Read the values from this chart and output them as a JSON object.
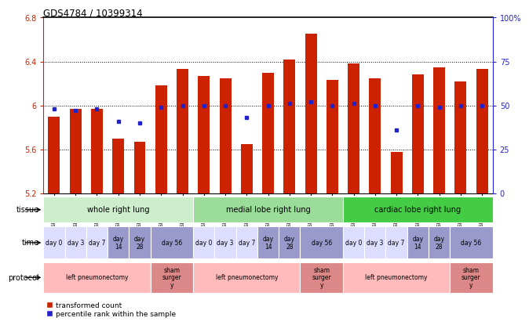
{
  "title": "GDS4784 / 10399314",
  "samples": [
    "GSM979804",
    "GSM979805",
    "GSM979806",
    "GSM979807",
    "GSM979808",
    "GSM979809",
    "GSM979810",
    "GSM979790",
    "GSM979791",
    "GSM979792",
    "GSM979793",
    "GSM979794",
    "GSM979795",
    "GSM979796",
    "GSM979797",
    "GSM979798",
    "GSM979799",
    "GSM979800",
    "GSM979801",
    "GSM979802",
    "GSM979803"
  ],
  "bar_values": [
    5.9,
    5.97,
    5.97,
    5.7,
    5.67,
    6.18,
    6.33,
    6.27,
    6.25,
    5.65,
    6.3,
    6.42,
    6.65,
    6.23,
    6.38,
    6.25,
    5.58,
    6.28,
    6.35,
    6.22,
    6.33
  ],
  "percentile_values": [
    48,
    47,
    48,
    41,
    40,
    49,
    50,
    50,
    50,
    43,
    50,
    51,
    52,
    50,
    51,
    50,
    36,
    50,
    49,
    50,
    50
  ],
  "ylim_left": [
    5.2,
    6.8
  ],
  "ylim_right": [
    0,
    100
  ],
  "yticks_left": [
    5.2,
    5.6,
    6.0,
    6.4,
    6.8
  ],
  "yticks_right": [
    0,
    25,
    50,
    75,
    100
  ],
  "ytick_labels_left": [
    "5.2",
    "5.6",
    "6",
    "6.4",
    "6.8"
  ],
  "ytick_labels_right": [
    "0",
    "25",
    "50",
    "75",
    "100%"
  ],
  "bar_color": "#cc2200",
  "dot_color": "#2222cc",
  "background_color": "#ffffff",
  "grid_color": "#888888",
  "tissue_groups": [
    {
      "label": "whole right lung",
      "start": 0,
      "end": 7,
      "color": "#cceecc"
    },
    {
      "label": "medial lobe right lung",
      "start": 7,
      "end": 14,
      "color": "#99dd99"
    },
    {
      "label": "cardiac lobe right lung",
      "start": 14,
      "end": 21,
      "color": "#44cc44"
    }
  ],
  "time_groups": [
    {
      "label": "day 0",
      "start": 0,
      "end": 1,
      "color": "#ddddff"
    },
    {
      "label": "day 3",
      "start": 1,
      "end": 2,
      "color": "#ddddff"
    },
    {
      "label": "day 7",
      "start": 2,
      "end": 3,
      "color": "#ddddff"
    },
    {
      "label": "day\n14",
      "start": 3,
      "end": 4,
      "color": "#9999cc"
    },
    {
      "label": "day\n28",
      "start": 4,
      "end": 5,
      "color": "#9999cc"
    },
    {
      "label": "day 56",
      "start": 5,
      "end": 7,
      "color": "#9999cc"
    },
    {
      "label": "day 0",
      "start": 7,
      "end": 8,
      "color": "#ddddff"
    },
    {
      "label": "day 3",
      "start": 8,
      "end": 9,
      "color": "#ddddff"
    },
    {
      "label": "day 7",
      "start": 9,
      "end": 10,
      "color": "#ddddff"
    },
    {
      "label": "day\n14",
      "start": 10,
      "end": 11,
      "color": "#9999cc"
    },
    {
      "label": "day\n28",
      "start": 11,
      "end": 12,
      "color": "#9999cc"
    },
    {
      "label": "day 56",
      "start": 12,
      "end": 14,
      "color": "#9999cc"
    },
    {
      "label": "day 0",
      "start": 14,
      "end": 15,
      "color": "#ddddff"
    },
    {
      "label": "day 3",
      "start": 15,
      "end": 16,
      "color": "#ddddff"
    },
    {
      "label": "day 7",
      "start": 16,
      "end": 17,
      "color": "#ddddff"
    },
    {
      "label": "day\n14",
      "start": 17,
      "end": 18,
      "color": "#9999cc"
    },
    {
      "label": "day\n28",
      "start": 18,
      "end": 19,
      "color": "#9999cc"
    },
    {
      "label": "day 56",
      "start": 19,
      "end": 21,
      "color": "#9999cc"
    }
  ],
  "protocol_groups": [
    {
      "label": "left pneumonectomy",
      "start": 0,
      "end": 5,
      "color": "#ffbbbb"
    },
    {
      "label": "sham\nsurger\ny",
      "start": 5,
      "end": 7,
      "color": "#dd8888"
    },
    {
      "label": "left pneumonectomy",
      "start": 7,
      "end": 12,
      "color": "#ffbbbb"
    },
    {
      "label": "sham\nsurger\ny",
      "start": 12,
      "end": 14,
      "color": "#dd8888"
    },
    {
      "label": "left pneumonectomy",
      "start": 14,
      "end": 19,
      "color": "#ffbbbb"
    },
    {
      "label": "sham\nsurger\ny",
      "start": 19,
      "end": 21,
      "color": "#dd8888"
    }
  ]
}
